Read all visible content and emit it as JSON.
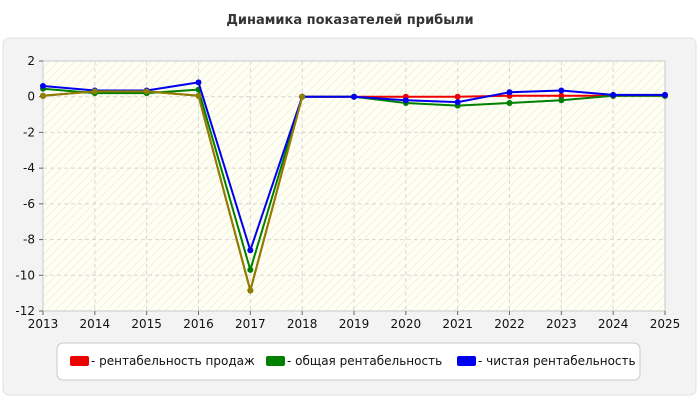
{
  "chart_data": {
    "type": "line",
    "title": "Динамика показателей прибыли",
    "x": [
      "2013",
      "2014",
      "2015",
      "2016",
      "2017",
      "2018",
      "2019",
      "2020",
      "2021",
      "2022",
      "2023",
      "2024",
      "2025"
    ],
    "yticks": [
      "2",
      "0",
      "-2",
      "-4",
      "-6",
      "-8",
      "-10",
      "-12"
    ],
    "ylim": [
      -12,
      2
    ],
    "grid": true,
    "legend_position": "bottom",
    "series": [
      {
        "name": "- рентабельность продаж",
        "color": "#ee0000",
        "values": [
          0.05,
          0.3,
          0.3,
          0.05,
          -10.85,
          0.0,
          0.0,
          0.0,
          0.0,
          0.05,
          0.05,
          0.05,
          0.05
        ]
      },
      {
        "name": "- общая рентабельность",
        "color": "#008000",
        "values": [
          0.45,
          0.2,
          0.2,
          0.4,
          -9.7,
          0.0,
          0.0,
          -0.35,
          -0.5,
          -0.35,
          -0.2,
          0.05,
          0.05
        ]
      },
      {
        "name": "- чистая рентабельность",
        "color": "#0000ee",
        "values": [
          0.6,
          0.35,
          0.35,
          0.8,
          -8.6,
          0.0,
          0.0,
          -0.2,
          -0.3,
          0.25,
          0.35,
          0.1,
          0.1
        ]
      }
    ],
    "overlap_color": "#8b8000"
  }
}
